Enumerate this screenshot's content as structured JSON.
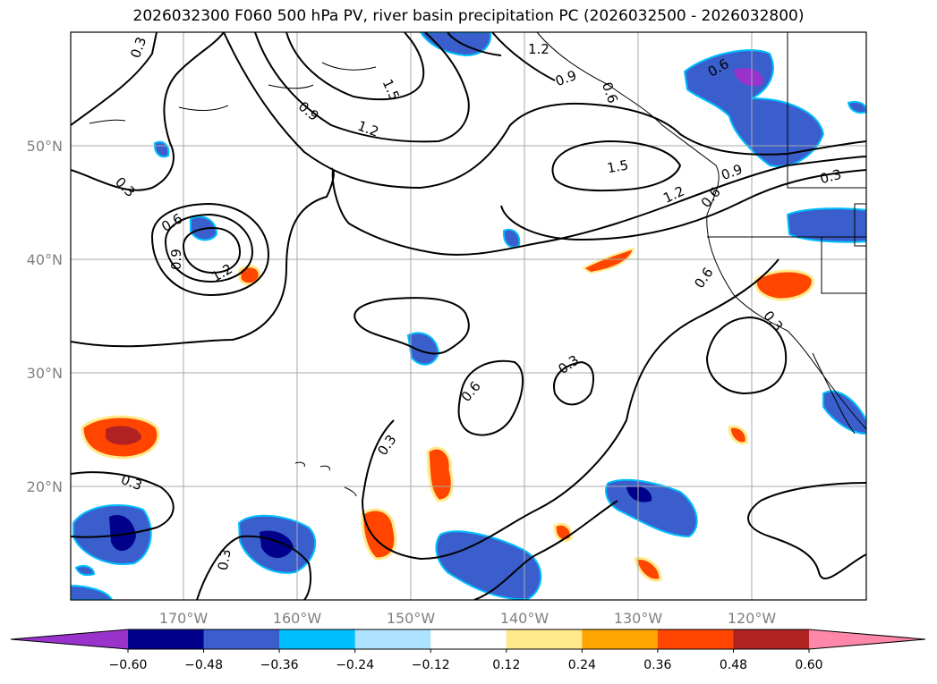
{
  "title": "2026032300 F060 500 hPa PV, river basin precipitation PC (2026032500 - 2026032800)",
  "map": {
    "lon_labels": [
      "170°W",
      "160°W",
      "150°W",
      "140°W",
      "130°W",
      "120°W"
    ],
    "lat_labels": [
      "50°N",
      "40°N",
      "30°N",
      "20°N"
    ],
    "contour_labels": [
      "0.3",
      "0.3",
      "0.3",
      "0.3",
      "0.3",
      "0.3",
      "0.3",
      "0.6",
      "0.6",
      "0.6",
      "0.6",
      "0.6",
      "0.9",
      "0.9",
      "0.9",
      "1.2",
      "1.2",
      "1.2",
      "1.2",
      "1.5",
      "1.5",
      "0.6",
      "0.9",
      "0.3"
    ]
  },
  "colorbar": {
    "ticks": [
      "−0.60",
      "−0.48",
      "−0.36",
      "−0.24",
      "−0.12",
      "0.12",
      "0.24",
      "0.36",
      "0.48",
      "0.60"
    ],
    "colors": [
      "#9933cc",
      "#00008b",
      "#3a5fcd",
      "#00bfff",
      "#aee3ff",
      "#ffffff",
      "#ffe98a",
      "#ffa500",
      "#ff4500",
      "#b22222",
      "#ff88aa"
    ]
  }
}
